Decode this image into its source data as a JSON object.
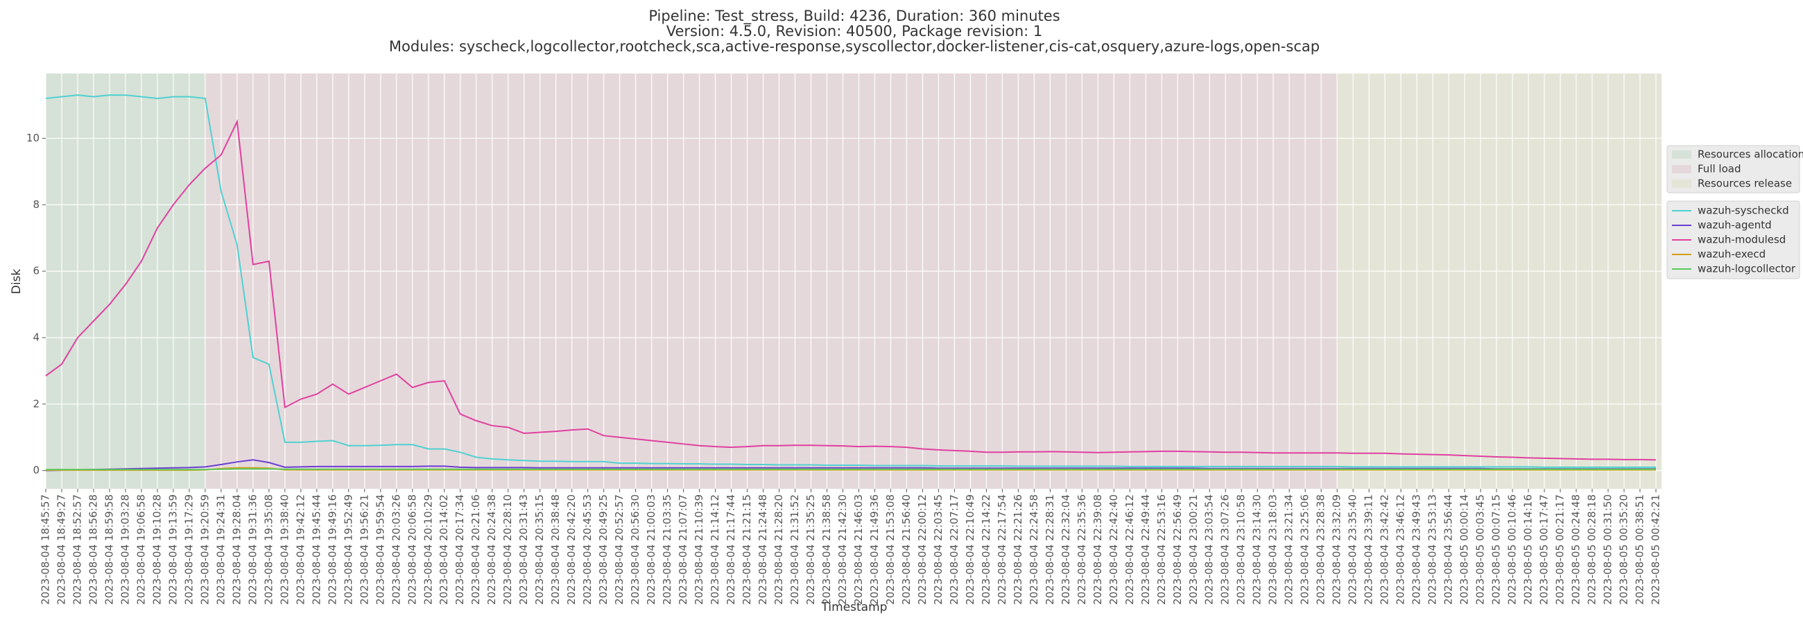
{
  "chart_data": {
    "type": "line",
    "title": [
      "Pipeline: Test_stress, Build: 4236, Duration: 360 minutes",
      "Version: 4.5.0, Revision: 40500, Package revision: 1",
      "Modules: syscheck,logcollector,rootcheck,sca,active-response,syscollector,docker-listener,cis-cat,osquery,azure-logs,open-scap"
    ],
    "x_label": "Timestamp",
    "y_label": "Disk",
    "ylim": [
      -0.55,
      11.95
    ],
    "yticks": [
      0,
      2,
      4,
      6,
      8,
      10
    ],
    "grid": true,
    "legend": "right",
    "categories": [
      "2023-08-04 18:45:57",
      "2023-08-04 18:49:27",
      "2023-08-04 18:52:57",
      "2023-08-04 18:56:28",
      "2023-08-04 18:59:58",
      "2023-08-04 19:03:28",
      "2023-08-04 19:06:58",
      "2023-08-04 19:10:28",
      "2023-08-04 19:13:59",
      "2023-08-04 19:17:29",
      "2023-08-04 19:20:59",
      "2023-08-04 19:24:31",
      "2023-08-04 19:28:04",
      "2023-08-04 19:31:36",
      "2023-08-04 19:35:08",
      "2023-08-04 19:38:40",
      "2023-08-04 19:42:12",
      "2023-08-04 19:45:44",
      "2023-08-04 19:49:16",
      "2023-08-04 19:52:49",
      "2023-08-04 19:56:21",
      "2023-08-04 19:59:54",
      "2023-08-04 20:03:26",
      "2023-08-04 20:06:58",
      "2023-08-04 20:10:29",
      "2023-08-04 20:14:02",
      "2023-08-04 20:17:34",
      "2023-08-04 20:21:06",
      "2023-08-04 20:24:38",
      "2023-08-04 20:28:10",
      "2023-08-04 20:31:43",
      "2023-08-04 20:35:15",
      "2023-08-04 20:38:48",
      "2023-08-04 20:42:20",
      "2023-08-04 20:45:53",
      "2023-08-04 20:49:25",
      "2023-08-04 20:52:57",
      "2023-08-04 20:56:30",
      "2023-08-04 21:00:03",
      "2023-08-04 21:03:35",
      "2023-08-04 21:07:07",
      "2023-08-04 21:10:39",
      "2023-08-04 21:14:12",
      "2023-08-04 21:17:44",
      "2023-08-04 21:21:15",
      "2023-08-04 21:24:48",
      "2023-08-04 21:28:20",
      "2023-08-04 21:31:52",
      "2023-08-04 21:35:25",
      "2023-08-04 21:38:58",
      "2023-08-04 21:42:30",
      "2023-08-04 21:46:03",
      "2023-08-04 21:49:36",
      "2023-08-04 21:53:08",
      "2023-08-04 21:56:40",
      "2023-08-04 22:00:12",
      "2023-08-04 22:03:45",
      "2023-08-04 22:07:17",
      "2023-08-04 22:10:49",
      "2023-08-04 22:14:22",
      "2023-08-04 22:17:54",
      "2023-08-04 22:21:26",
      "2023-08-04 22:24:58",
      "2023-08-04 22:28:31",
      "2023-08-04 22:32:04",
      "2023-08-04 22:35:36",
      "2023-08-04 22:39:08",
      "2023-08-04 22:42:40",
      "2023-08-04 22:46:12",
      "2023-08-04 22:49:44",
      "2023-08-04 22:53:16",
      "2023-08-04 22:56:49",
      "2023-08-04 23:00:21",
      "2023-08-04 23:03:54",
      "2023-08-04 23:07:26",
      "2023-08-04 23:10:58",
      "2023-08-04 23:14:30",
      "2023-08-04 23:18:03",
      "2023-08-04 23:21:34",
      "2023-08-04 23:25:06",
      "2023-08-04 23:28:38",
      "2023-08-04 23:32:09",
      "2023-08-04 23:35:40",
      "2023-08-04 23:39:11",
      "2023-08-04 23:42:42",
      "2023-08-04 23:46:12",
      "2023-08-04 23:49:43",
      "2023-08-04 23:53:13",
      "2023-08-04 23:56:44",
      "2023-08-05 00:00:14",
      "2023-08-05 00:03:45",
      "2023-08-05 00:07:15",
      "2023-08-05 00:10:46",
      "2023-08-05 00:14:16",
      "2023-08-05 00:17:47",
      "2023-08-05 00:21:17",
      "2023-08-05 00:24:48",
      "2023-08-05 00:28:18",
      "2023-08-05 00:31:50",
      "2023-08-05 00:35:20",
      "2023-08-05 00:38:51",
      "2023-08-05 00:42:21"
    ],
    "spans": [
      {
        "name": "Resources allocation",
        "start": "2023-08-04 18:45:57",
        "end": "2023-08-04 19:20:59",
        "color": "#d6e1d7"
      },
      {
        "name": "Full load",
        "start": "2023-08-04 19:20:59",
        "end": "2023-08-04 23:32:09",
        "color": "#e5d8da"
      },
      {
        "name": "Resources release",
        "start": "2023-08-04 23:32:09",
        "end": "2023-08-05 00:42:21",
        "color": "#e4e5d7"
      }
    ],
    "series": [
      {
        "name": "wazuh-syscheckd",
        "color": "#4fd1d1",
        "values": [
          11.2,
          11.25,
          11.3,
          11.25,
          11.3,
          11.3,
          11.25,
          11.2,
          11.25,
          11.25,
          11.2,
          8.4,
          6.8,
          3.4,
          3.2,
          0.85,
          0.85,
          0.88,
          0.9,
          0.75,
          0.75,
          0.76,
          0.78,
          0.78,
          0.65,
          0.65,
          0.55,
          0.4,
          0.35,
          0.32,
          0.3,
          0.28,
          0.28,
          0.27,
          0.27,
          0.27,
          0.22,
          0.22,
          0.21,
          0.21,
          0.2,
          0.2,
          0.19,
          0.19,
          0.18,
          0.18,
          0.17,
          0.17,
          0.17,
          0.16,
          0.16,
          0.16,
          0.15,
          0.15,
          0.15,
          0.15,
          0.14,
          0.14,
          0.14,
          0.14,
          0.14,
          0.13,
          0.13,
          0.13,
          0.13,
          0.13,
          0.13,
          0.13,
          0.12,
          0.12,
          0.12,
          0.12,
          0.12,
          0.12,
          0.12,
          0.12,
          0.12,
          0.12,
          0.12,
          0.12,
          0.12,
          0.12,
          0.11,
          0.11,
          0.11,
          0.11,
          0.11,
          0.11,
          0.11,
          0.11,
          0.11,
          0.11,
          0.11,
          0.11,
          0.1,
          0.1,
          0.1,
          0.1,
          0.1,
          0.1,
          0.1,
          0.1
        ]
      },
      {
        "name": "wazuh-agentd",
        "color": "#6a3fd0",
        "values": [
          0.0,
          0.01,
          0.02,
          0.03,
          0.04,
          0.05,
          0.06,
          0.07,
          0.08,
          0.09,
          0.11,
          0.18,
          0.26,
          0.32,
          0.24,
          0.1,
          0.11,
          0.12,
          0.12,
          0.12,
          0.12,
          0.12,
          0.12,
          0.12,
          0.13,
          0.13,
          0.1,
          0.09,
          0.09,
          0.09,
          0.09,
          0.08,
          0.08,
          0.08,
          0.08,
          0.08,
          0.08,
          0.08,
          0.08,
          0.08,
          0.08,
          0.08,
          0.08,
          0.08,
          0.08,
          0.08,
          0.08,
          0.08,
          0.08,
          0.08,
          0.08,
          0.08,
          0.08,
          0.08,
          0.08,
          0.08,
          0.07,
          0.07,
          0.07,
          0.07,
          0.07,
          0.07,
          0.07,
          0.07,
          0.07,
          0.07,
          0.07,
          0.07,
          0.07,
          0.07,
          0.07,
          0.07,
          0.07,
          0.06,
          0.06,
          0.06,
          0.06,
          0.06,
          0.06,
          0.06,
          0.06,
          0.06,
          0.06,
          0.06,
          0.06,
          0.06,
          0.06,
          0.06,
          0.06,
          0.06,
          0.06,
          0.05,
          0.05,
          0.05,
          0.05,
          0.05,
          0.05,
          0.05,
          0.05,
          0.05,
          0.05,
          0.05
        ]
      },
      {
        "name": "wazuh-modulesd",
        "color": "#e040a0",
        "values": [
          2.85,
          3.2,
          4.0,
          4.5,
          5.0,
          5.6,
          6.3,
          7.3,
          8.0,
          8.6,
          9.1,
          9.5,
          10.5,
          6.2,
          6.3,
          1.9,
          2.15,
          2.3,
          2.6,
          2.3,
          2.5,
          2.7,
          2.9,
          2.5,
          2.65,
          2.7,
          1.7,
          1.5,
          1.35,
          1.3,
          1.12,
          1.15,
          1.18,
          1.22,
          1.25,
          1.05,
          1.0,
          0.95,
          0.9,
          0.85,
          0.8,
          0.75,
          0.72,
          0.7,
          0.72,
          0.75,
          0.75,
          0.76,
          0.76,
          0.75,
          0.74,
          0.72,
          0.73,
          0.72,
          0.7,
          0.65,
          0.62,
          0.6,
          0.58,
          0.55,
          0.55,
          0.56,
          0.56,
          0.57,
          0.56,
          0.55,
          0.54,
          0.55,
          0.56,
          0.57,
          0.58,
          0.58,
          0.57,
          0.56,
          0.55,
          0.55,
          0.54,
          0.53,
          0.53,
          0.53,
          0.53,
          0.53,
          0.52,
          0.52,
          0.52,
          0.5,
          0.49,
          0.48,
          0.47,
          0.45,
          0.43,
          0.41,
          0.4,
          0.38,
          0.37,
          0.36,
          0.35,
          0.34,
          0.34,
          0.33,
          0.33,
          0.32
        ]
      },
      {
        "name": "wazuh-execd",
        "color": "#d4a017",
        "values": [
          0.01,
          0.01,
          0.01,
          0.01,
          0.01,
          0.01,
          0.01,
          0.01,
          0.01,
          0.01,
          0.02,
          0.06,
          0.08,
          0.08,
          0.07,
          0.02,
          0.02,
          0.02,
          0.02,
          0.02,
          0.02,
          0.02,
          0.02,
          0.02,
          0.02,
          0.02,
          0.02,
          0.02,
          0.02,
          0.02,
          0.02,
          0.02,
          0.02,
          0.02,
          0.02,
          0.02,
          0.02,
          0.02,
          0.02,
          0.02,
          0.02,
          0.02,
          0.02,
          0.02,
          0.02,
          0.02,
          0.02,
          0.02,
          0.02,
          0.02,
          0.02,
          0.02,
          0.02,
          0.02,
          0.02,
          0.02,
          0.02,
          0.02,
          0.02,
          0.02,
          0.02,
          0.02,
          0.02,
          0.02,
          0.02,
          0.02,
          0.02,
          0.02,
          0.02,
          0.02,
          0.02,
          0.02,
          0.02,
          0.02,
          0.02,
          0.02,
          0.02,
          0.02,
          0.02,
          0.02,
          0.02,
          0.02,
          0.02,
          0.02,
          0.02,
          0.02,
          0.02,
          0.02,
          0.02,
          0.02,
          0.02,
          0.02,
          0.02,
          0.02,
          0.02,
          0.02,
          0.02,
          0.02,
          0.02,
          0.02,
          0.02,
          0.02
        ]
      },
      {
        "name": "wazuh-logcollector",
        "color": "#5cc85c",
        "values": [
          0.03,
          0.03,
          0.03,
          0.03,
          0.03,
          0.03,
          0.03,
          0.03,
          0.03,
          0.03,
          0.03,
          0.04,
          0.05,
          0.05,
          0.05,
          0.04,
          0.04,
          0.04,
          0.04,
          0.04,
          0.04,
          0.04,
          0.04,
          0.04,
          0.04,
          0.04,
          0.04,
          0.04,
          0.04,
          0.04,
          0.04,
          0.04,
          0.04,
          0.04,
          0.04,
          0.04,
          0.04,
          0.04,
          0.04,
          0.04,
          0.04,
          0.04,
          0.04,
          0.04,
          0.04,
          0.04,
          0.04,
          0.04,
          0.04,
          0.04,
          0.04,
          0.04,
          0.04,
          0.04,
          0.04,
          0.04,
          0.04,
          0.04,
          0.04,
          0.04,
          0.04,
          0.04,
          0.04,
          0.04,
          0.04,
          0.04,
          0.04,
          0.04,
          0.04,
          0.04,
          0.04,
          0.04,
          0.04,
          0.04,
          0.04,
          0.04,
          0.04,
          0.04,
          0.04,
          0.04,
          0.04,
          0.04,
          0.04,
          0.04,
          0.04,
          0.04,
          0.04,
          0.04,
          0.04,
          0.04,
          0.04,
          0.04,
          0.04,
          0.04,
          0.04,
          0.04,
          0.04,
          0.04,
          0.04,
          0.04,
          0.04,
          0.04
        ]
      }
    ]
  }
}
